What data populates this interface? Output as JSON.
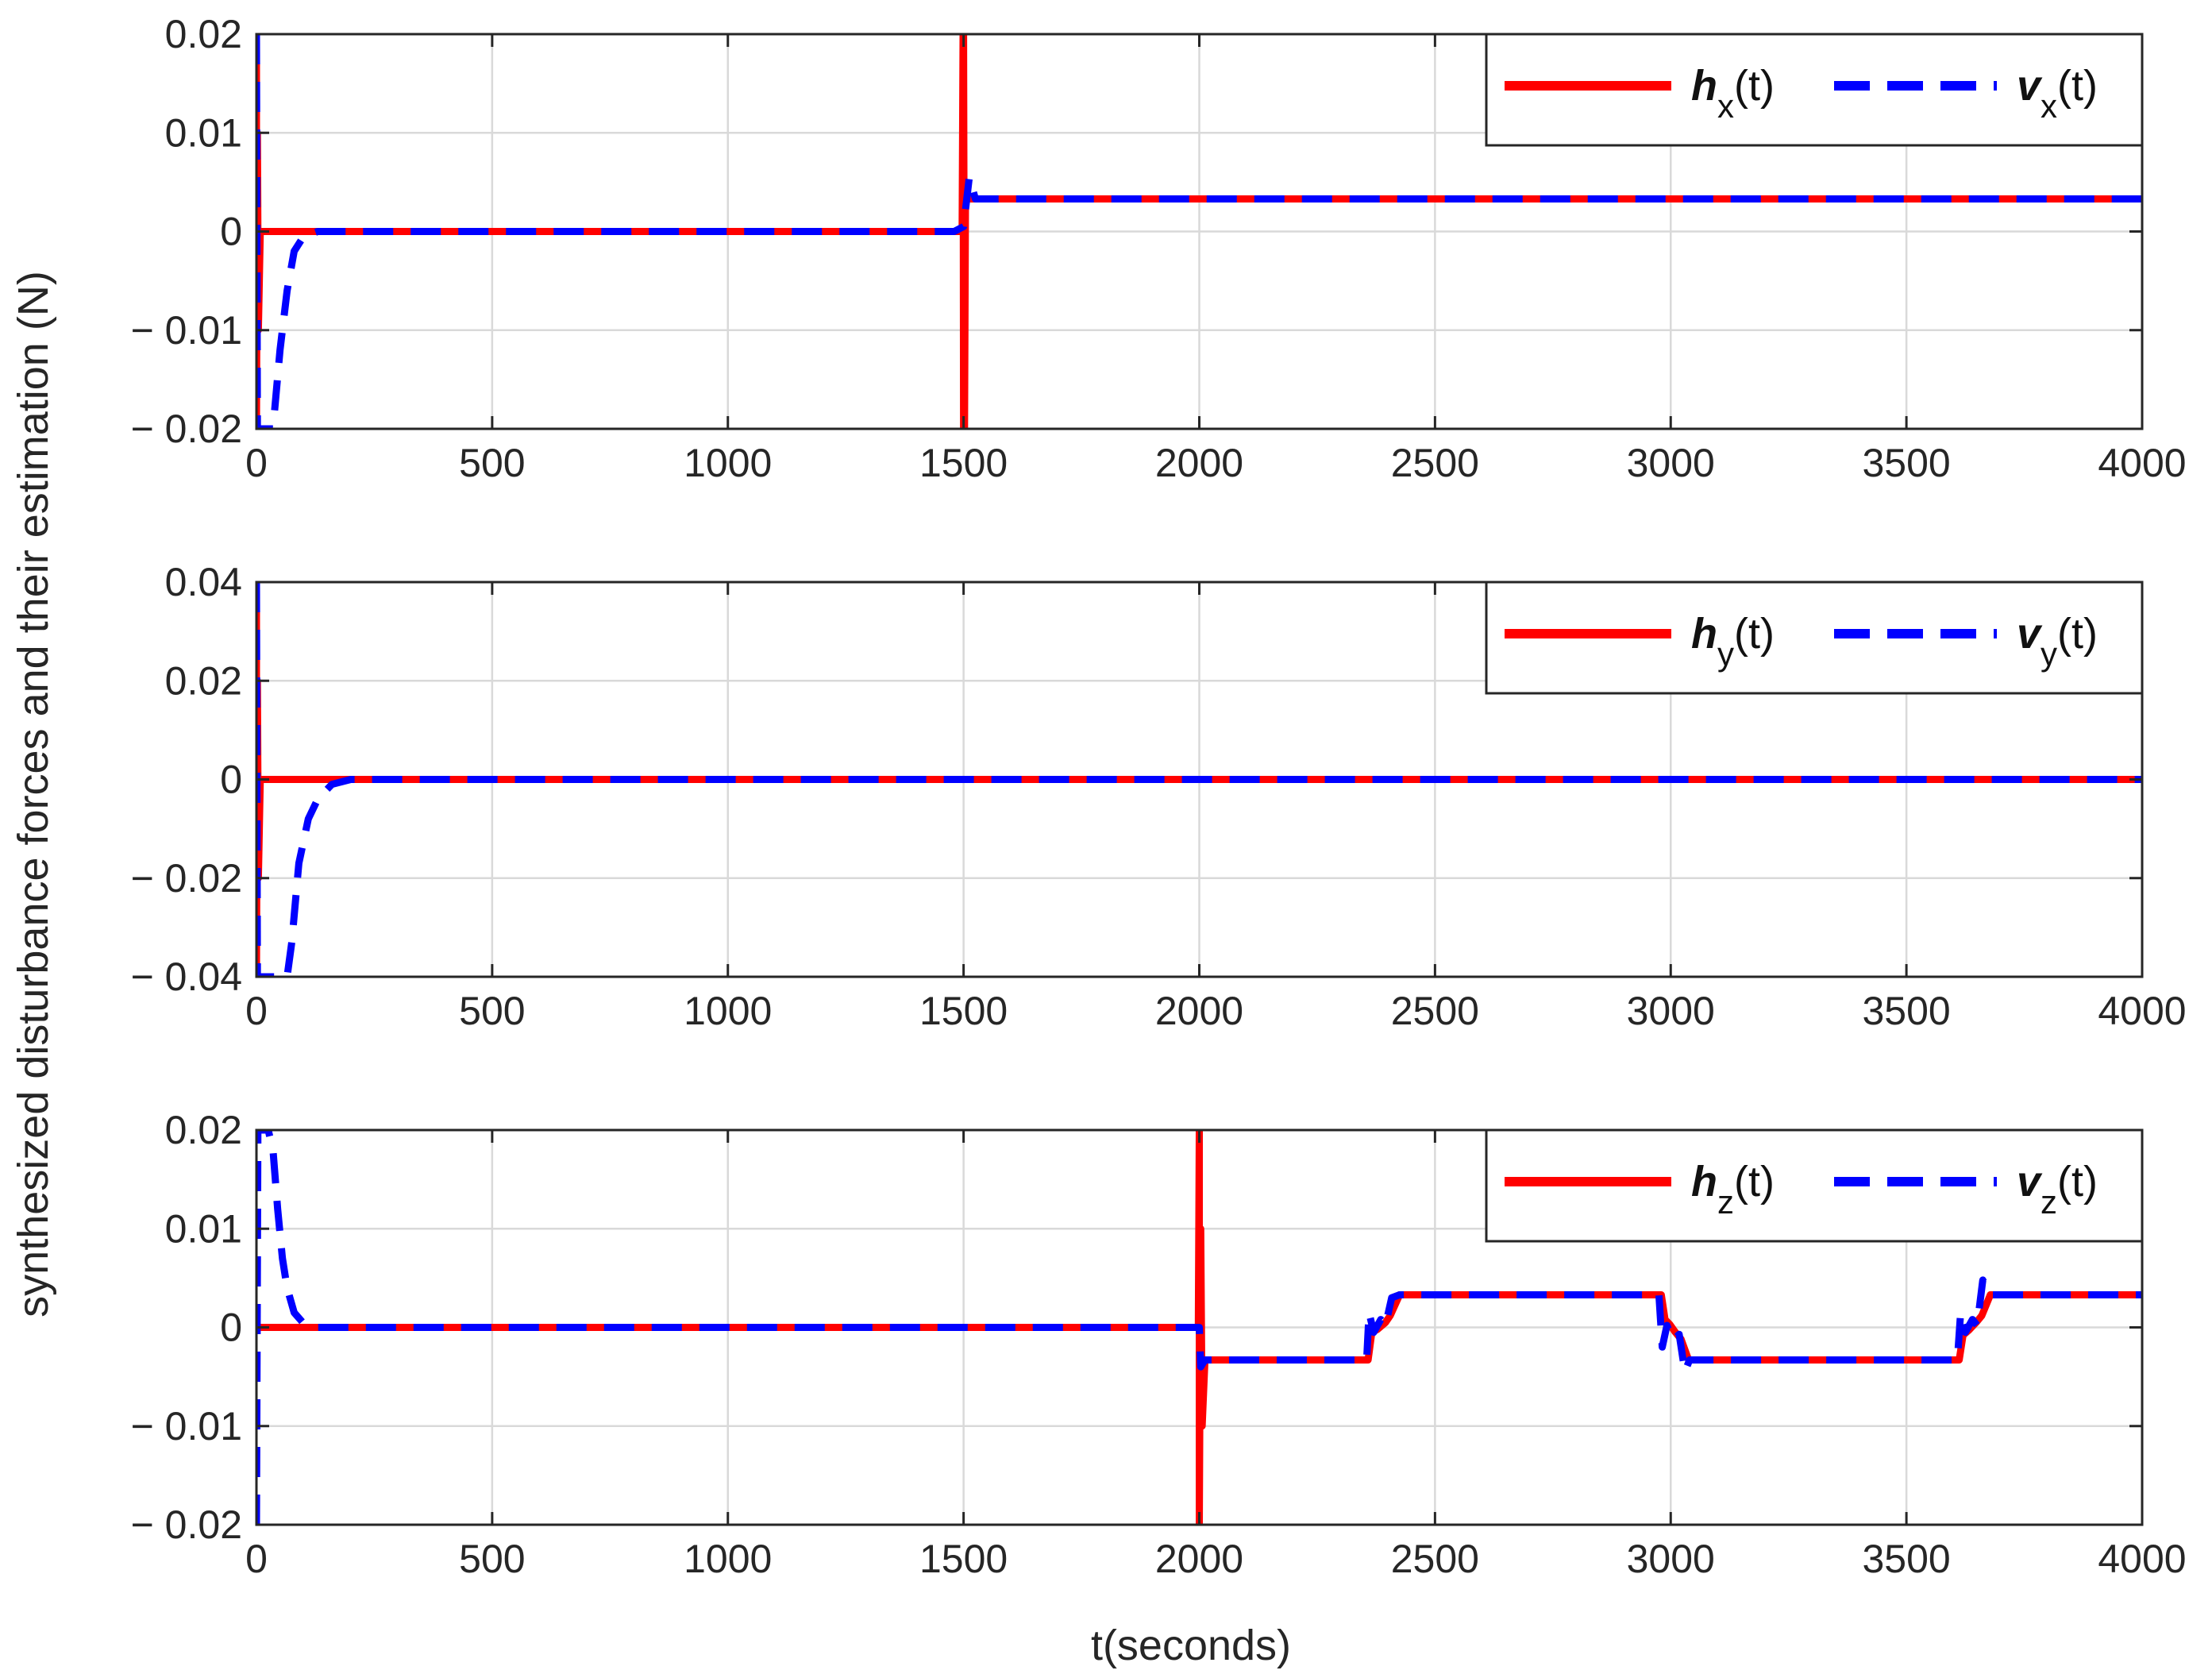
{
  "chart_data": [
    {
      "type": "line",
      "panel": "x",
      "xlim": [
        0,
        4000
      ],
      "ylim": [
        -0.02,
        0.02
      ],
      "xticks": [
        0,
        500,
        1000,
        1500,
        2000,
        2500,
        3000,
        3500,
        4000
      ],
      "yticks": [
        -0.02,
        -0.01,
        0,
        0.01,
        0.02
      ],
      "xtick_labels": [
        "0",
        "500",
        "1000",
        "1500",
        "2000",
        "2500",
        "3000",
        "3500",
        "4000"
      ],
      "ytick_labels": [
        "− 0.02",
        "− 0.01",
        "0",
        "0.01",
        "0.02"
      ],
      "grid": true,
      "legend_position": "top-right",
      "series": [
        {
          "name": "h_x(t)",
          "symbol": "h",
          "subscript": "x",
          "suffix": "(t)",
          "color": "#ff0000",
          "style": "solid",
          "x": [
            0,
            0,
            2,
            4,
            8,
            1497,
            1499,
            1500,
            1500,
            1502,
            1504,
            1510,
            4000
          ],
          "y": [
            0.02,
            -0.02,
            0.01,
            -0.01,
            0,
            0,
            0.02,
            -0.02,
            0.02,
            -0.02,
            0.0033,
            0.0033,
            0.0033
          ]
        },
        {
          "name": "v_x(t)",
          "symbol": "v",
          "subscript": "x",
          "suffix": "(t)",
          "color": "#0000ff",
          "style": "dashed",
          "x": [
            0,
            2,
            8,
            20,
            35,
            50,
            65,
            80,
            100,
            130,
            200,
            1480,
            1500,
            1512,
            1525,
            4000
          ],
          "y": [
            0.02,
            -0.02,
            -0.02,
            -0.02,
            -0.02,
            -0.012,
            -0.006,
            -0.002,
            -0.0005,
            0,
            0,
            0,
            0.0005,
            0.0055,
            0.0033,
            0.0033
          ]
        }
      ]
    },
    {
      "type": "line",
      "panel": "y",
      "xlim": [
        0,
        4000
      ],
      "ylim": [
        -0.04,
        0.04
      ],
      "xticks": [
        0,
        500,
        1000,
        1500,
        2000,
        2500,
        3000,
        3500,
        4000
      ],
      "yticks": [
        -0.04,
        -0.02,
        0,
        0.02,
        0.04
      ],
      "xtick_labels": [
        "0",
        "500",
        "1000",
        "1500",
        "2000",
        "2500",
        "3000",
        "3500",
        "4000"
      ],
      "ytick_labels": [
        "− 0.04",
        "− 0.02",
        "0",
        "0.02",
        "0.04"
      ],
      "grid": true,
      "legend_position": "top-right",
      "series": [
        {
          "name": "h_y(t)",
          "symbol": "h",
          "subscript": "y",
          "suffix": "(t)",
          "color": "#ff0000",
          "style": "solid",
          "x": [
            0,
            0,
            2,
            4,
            8,
            4000
          ],
          "y": [
            0.04,
            -0.04,
            0.02,
            -0.02,
            0,
            0
          ]
        },
        {
          "name": "v_y(t)",
          "symbol": "v",
          "subscript": "y",
          "suffix": "(t)",
          "color": "#0000ff",
          "style": "dashed",
          "x": [
            0,
            2,
            20,
            50,
            65,
            75,
            90,
            110,
            130,
            160,
            200,
            4000
          ],
          "y": [
            0.04,
            -0.04,
            -0.04,
            -0.04,
            -0.04,
            -0.033,
            -0.017,
            -0.008,
            -0.004,
            -0.001,
            0,
            0
          ]
        }
      ]
    },
    {
      "type": "line",
      "panel": "z",
      "xlim": [
        0,
        4000
      ],
      "ylim": [
        -0.02,
        0.02
      ],
      "xticks": [
        0,
        500,
        1000,
        1500,
        2000,
        2500,
        3000,
        3500,
        4000
      ],
      "yticks": [
        -0.02,
        -0.01,
        0,
        0.01,
        0.02
      ],
      "xtick_labels": [
        "0",
        "500",
        "1000",
        "1500",
        "2000",
        "2500",
        "3000",
        "3500",
        "4000"
      ],
      "ytick_labels": [
        "− 0.02",
        "− 0.01",
        "0",
        "0.01",
        "0.02"
      ],
      "grid": true,
      "legend_position": "top-right",
      "series": [
        {
          "name": "h_z(t)",
          "symbol": "h",
          "subscript": "z",
          "suffix": "(t)",
          "color": "#ff0000",
          "style": "solid",
          "x": [
            0,
            1998,
            2000,
            2000,
            2003,
            2006,
            2012,
            2358,
            2366,
            2378,
            2395,
            2405,
            2425,
            2980,
            2988,
            2998,
            3010,
            3022,
            3038,
            3612,
            3620,
            3632,
            3648,
            3660,
            3678,
            4000
          ],
          "y": [
            0,
            0,
            0.02,
            -0.02,
            0.01,
            -0.01,
            -0.0033,
            -0.0033,
            -0.0005,
            -0.0002,
            0.0005,
            0.0012,
            0.0033,
            0.0033,
            0.0008,
            0.0003,
            -0.0005,
            -0.0012,
            -0.0033,
            -0.0033,
            -0.0008,
            -0.0003,
            0.0005,
            0.0012,
            0.0033,
            0.0033
          ]
        },
        {
          "name": "v_z(t)",
          "symbol": "v",
          "subscript": "z",
          "suffix": "(t)",
          "color": "#0000ff",
          "style": "dashed",
          "x": [
            0,
            3,
            8,
            15,
            25,
            35,
            45,
            55,
            65,
            80,
            100,
            130,
            2000,
            2003,
            2012,
            2355,
            2360,
            2370,
            2385,
            2395,
            2408,
            2425,
            2975,
            2982,
            2992,
            3005,
            3018,
            3030,
            3040,
            3608,
            3615,
            3625,
            3640,
            3650,
            3662,
            3678,
            4000
          ],
          "y": [
            -0.02,
            0.02,
            0.02,
            0.02,
            0.02,
            0.018,
            0.012,
            0.007,
            0.004,
            0.0015,
            0.0004,
            0,
            0,
            -0.004,
            -0.0033,
            -0.0033,
            0.0015,
            -0.0005,
            0.0008,
            0.0002,
            0.003,
            0.0033,
            0.0033,
            -0.002,
            0.0002,
            -0.0013,
            -0.0007,
            -0.0045,
            -0.0033,
            -0.0033,
            0.0015,
            -0.0005,
            0.0008,
            0.0002,
            0.0048,
            0.0033,
            0.0033
          ]
        }
      ]
    }
  ],
  "xlabel": "t(seconds)",
  "ylabel": "synthesized disturbance forces and their estimation (N)"
}
